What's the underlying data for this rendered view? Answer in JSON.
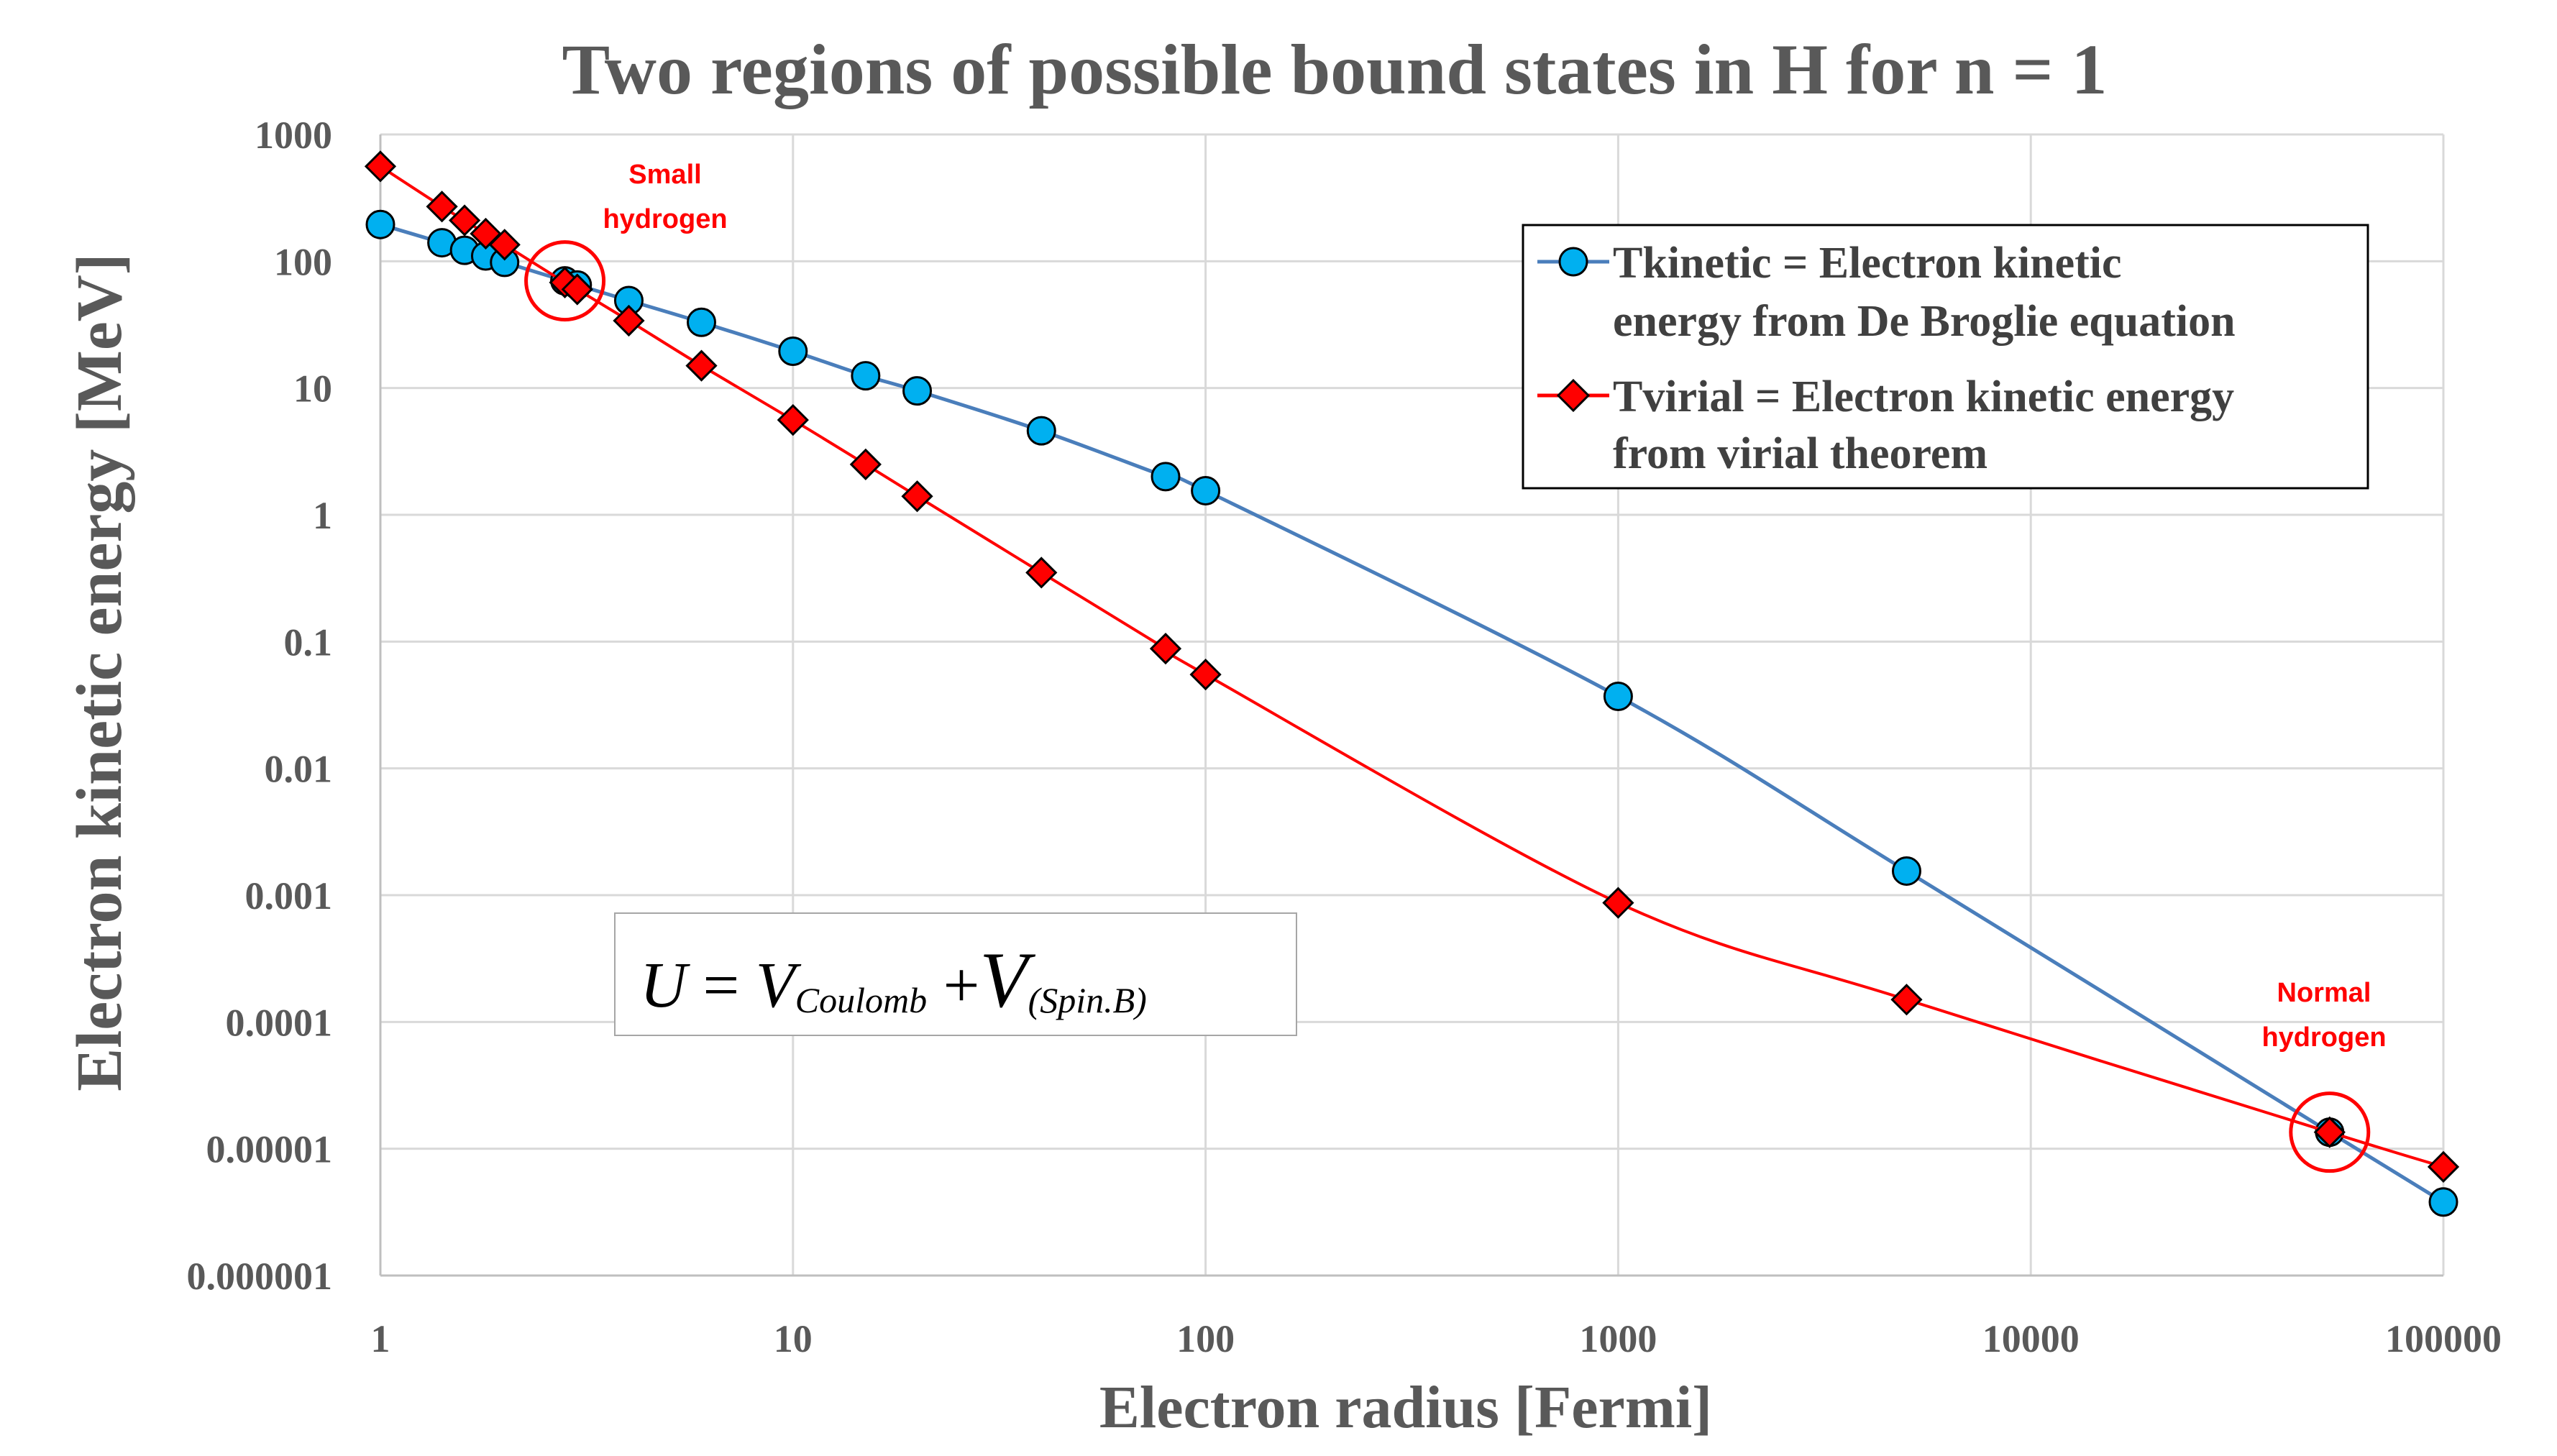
{
  "chart_data": {
    "type": "line",
    "title": "Two regions of possible bound states in H for n = 1",
    "xlabel": "Electron radius [Fermi]",
    "ylabel": "Electron kinetic energy  [MeV]",
    "xscale": "log",
    "yscale": "log",
    "xlim": [
      1,
      100000
    ],
    "ylim": [
      1e-06,
      1000
    ],
    "x_ticks": [
      "1",
      "10",
      "100",
      "1000",
      "10000",
      "100000"
    ],
    "y_ticks": [
      "0.000001",
      "0.00001",
      "0.0001",
      "0.001",
      "0.01",
      "0.1",
      "1",
      "10",
      "100",
      "1000"
    ],
    "grid": true,
    "legend_position": "top-right",
    "series": [
      {
        "name": "Tkinetic",
        "legend_lines": [
          "Tkinetic = Electron kinetic",
          "energy from De Broglie equation"
        ],
        "color": "#4a7ebb",
        "marker": "circle",
        "marker_color": "#00b0f0",
        "x": [
          1,
          1.41,
          1.6,
          1.8,
          2,
          2.8,
          3,
          4,
          6,
          10,
          15,
          20,
          40,
          80,
          100,
          1000,
          5000,
          53000,
          100000
        ],
        "y": [
          195,
          140,
          122,
          110,
          98,
          70,
          65,
          49,
          33,
          19.5,
          12.5,
          9.5,
          4.6,
          2.0,
          1.55,
          0.037,
          0.00155,
          1.35e-05,
          3.8e-06
        ]
      },
      {
        "name": "Tvirial",
        "legend_lines": [
          "Tvirial = Electron kinetic energy",
          "from virial theorem"
        ],
        "color": "#ff0000",
        "marker": "diamond",
        "marker_color": "#ff0000",
        "x": [
          1,
          1.41,
          1.6,
          1.8,
          2,
          2.8,
          3,
          4,
          6,
          10,
          15,
          20,
          40,
          80,
          100,
          1000,
          5000,
          53000,
          100000
        ],
        "y": [
          560,
          270,
          210,
          165,
          135,
          68,
          60,
          34,
          15,
          5.6,
          2.5,
          1.4,
          0.35,
          0.088,
          0.055,
          0.00087,
          0.00015,
          1.35e-05,
          7.2e-06
        ]
      }
    ],
    "annotations": [
      {
        "id": "small",
        "lines": [
          "Small",
          "hydrogen"
        ],
        "x": 2.8,
        "y": 70
      },
      {
        "id": "normal",
        "lines": [
          "Normal",
          "hydrogen"
        ],
        "x": 53000,
        "y": 1.35e-05
      }
    ],
    "equation": {
      "U": "U",
      "eq": " = ",
      "V1": "V",
      "sub1": "Coulomb",
      "plus": " +",
      "V2": "V",
      "sub2": "(Spin.B)"
    }
  }
}
